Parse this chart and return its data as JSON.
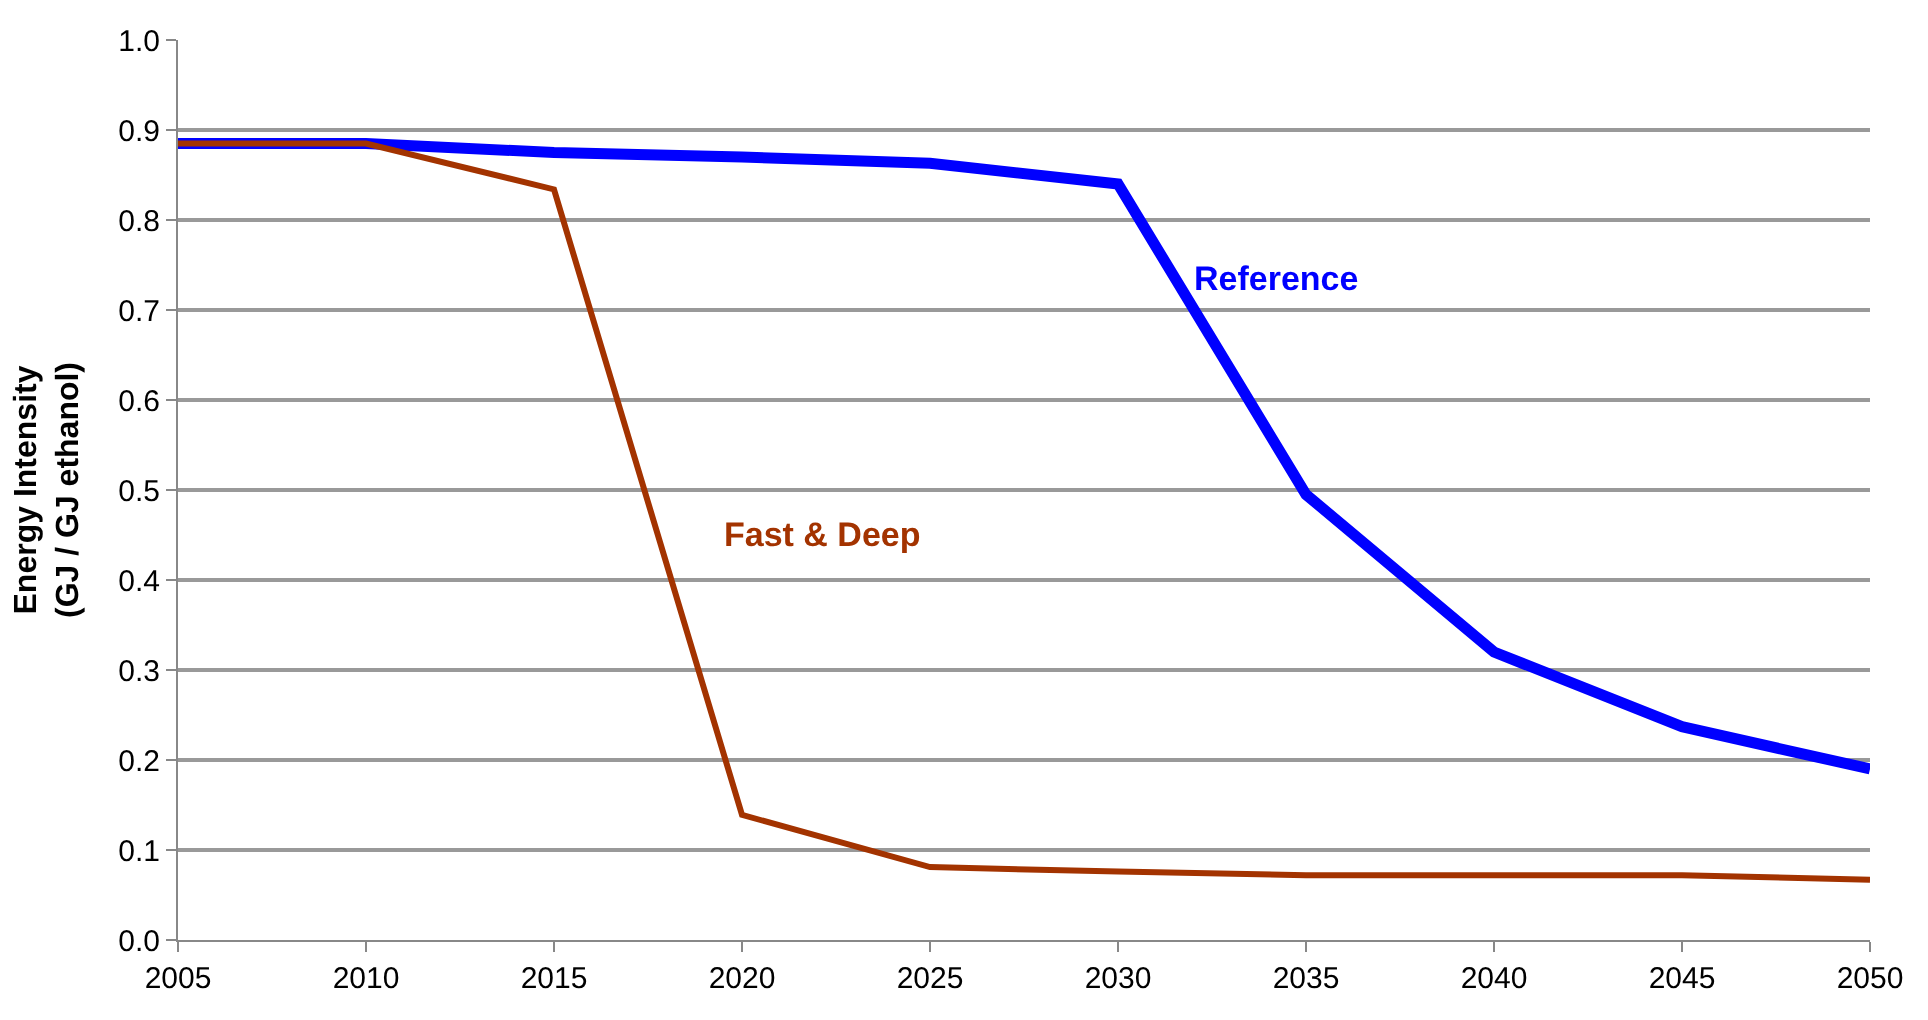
{
  "chart_data": {
    "type": "line",
    "ylabel": "Energy Intensity\n(GJ / GJ ethanol)",
    "x": [
      2005,
      2010,
      2015,
      2020,
      2025,
      2030,
      2035,
      2040,
      2045,
      2050
    ],
    "series": [
      {
        "name": "Reference",
        "color": "#0000ff",
        "values": [
          0.885,
          0.885,
          0.875,
          0.87,
          0.863,
          0.84,
          0.495,
          0.32,
          0.237,
          0.19
        ]
      },
      {
        "name": "Fast & Deep",
        "color": "#a33300",
        "values": [
          0.885,
          0.885,
          0.834,
          0.139,
          0.081,
          0.076,
          0.072,
          0.072,
          0.072,
          0.067
        ]
      }
    ],
    "xlim": [
      2005,
      2050
    ],
    "xticks": [
      2005,
      2010,
      2015,
      2020,
      2025,
      2030,
      2035,
      2040,
      2045,
      2050
    ],
    "ylim": [
      0,
      1.0
    ],
    "yticks": [
      {
        "value": 0,
        "label": "0.0"
      },
      {
        "value": 0.1,
        "label": "0.1"
      },
      {
        "value": 0.2,
        "label": "0.2"
      },
      {
        "value": 0.3,
        "label": "0.3"
      },
      {
        "value": 0.4,
        "label": "0.4"
      },
      {
        "value": 0.5,
        "label": "0.5"
      },
      {
        "value": 0.6,
        "label": "0.6"
      },
      {
        "value": 0.7,
        "label": "0.7"
      },
      {
        "value": 0.8,
        "label": "0.8"
      },
      {
        "value": 0.9,
        "label": "0.9"
      },
      {
        "value": 1.0,
        "label": "1.0"
      }
    ],
    "grid": "y",
    "legend": false,
    "marker": "none",
    "line_style": "solid"
  }
}
